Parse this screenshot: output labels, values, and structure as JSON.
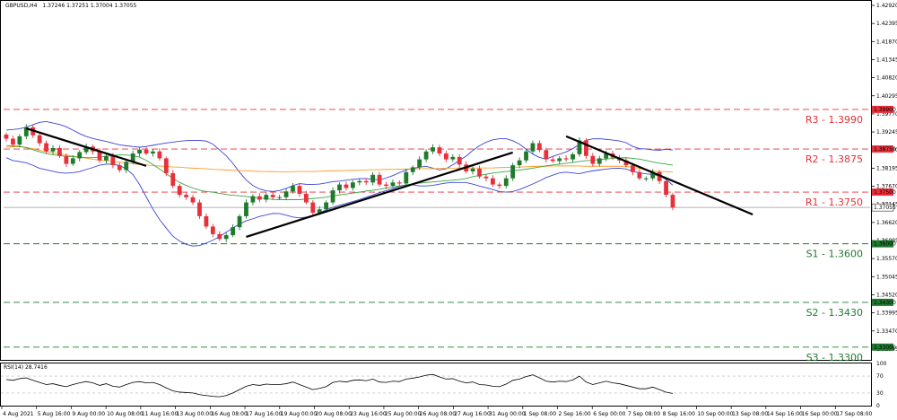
{
  "chart_data": {
    "type": "candlestick",
    "header": {
      "symbol_label": "GBPUSD,H4",
      "ohlc_label": "1.37246 1.37251 1.37004 1.37055"
    },
    "y_axis": {
      "ylim": [
        1.3263,
        1.4305
      ],
      "tick_values": [
        1.4292,
        1.42395,
        1.4187,
        1.41345,
        1.4082,
        1.40295,
        1.3977,
        1.39245,
        1.3872,
        1.38195,
        1.3767,
        1.37145,
        1.3662,
        1.36095,
        1.3557,
        1.35045,
        1.3452,
        1.33995,
        1.3347,
        1.32945
      ],
      "tick_labels": [
        "1.42920",
        "1.42395",
        "1.41870",
        "1.41345",
        "1.40820",
        "1.40295",
        "1.39770",
        "1.39245",
        "1.38720",
        "1.38195",
        "1.37670",
        "1.37145",
        "1.36620",
        "1.36095",
        "1.35570",
        "1.35045",
        "1.34520",
        "1.33995",
        "1.33470",
        "1.32945"
      ]
    },
    "x_axis": {
      "tick_labels": [
        "4 Aug 2021",
        "5 Aug 16:00",
        "9 Aug 00:00",
        "10 Aug 08:00",
        "11 Aug 16:00",
        "13 Aug 00:00",
        "16 Aug 08:00",
        "17 Aug 16:00",
        "19 Aug 00:00",
        "20 Aug 08:00",
        "23 Aug 16:00",
        "25 Aug 00:00",
        "26 Aug 08:00",
        "27 Aug 16:00",
        "31 Aug 00:00",
        "1 Sep 08:00",
        "2 Sep 16:00",
        "6 Sep 00:00",
        "7 Sep 08:00",
        "8 Sep 16:00",
        "10 Sep 00:00",
        "13 Sep 08:00",
        "14 Sep 16:00",
        "16 Sep 00:00",
        "17 Sep 08:00"
      ]
    },
    "candles": {
      "close_path": [
        1.3905,
        1.3888,
        1.3912,
        1.3938,
        1.3915,
        1.3892,
        1.3868,
        1.3878,
        1.3855,
        1.3832,
        1.3848,
        1.3866,
        1.3882,
        1.3868,
        1.3842,
        1.3855,
        1.3828,
        1.3814,
        1.3838,
        1.3862,
        1.3873,
        1.3862,
        1.3868,
        1.3848,
        1.3805,
        1.3768,
        1.3742,
        1.3735,
        1.372,
        1.368,
        1.365,
        1.3628,
        1.3614,
        1.3625,
        1.3648,
        1.368,
        1.372,
        1.3738,
        1.3728,
        1.3742,
        1.3735,
        1.3735,
        1.3752,
        1.3768,
        1.3745,
        1.372,
        1.369,
        1.37,
        1.372,
        1.3755,
        1.3772,
        1.3762,
        1.3778,
        1.3782,
        1.3778,
        1.38,
        1.3772,
        1.3768,
        1.3778,
        1.3775,
        1.3808,
        1.3822,
        1.3845,
        1.3868,
        1.388,
        1.3862,
        1.3845,
        1.3852,
        1.383,
        1.381,
        1.3818,
        1.3795,
        1.379,
        1.3772,
        1.3768,
        1.379,
        1.3828,
        1.3842,
        1.3868,
        1.3892,
        1.3872,
        1.3845,
        1.384,
        1.3848,
        1.3845,
        1.386,
        1.39,
        1.3855,
        1.3832,
        1.3848,
        1.3862,
        1.385,
        1.3842,
        1.3828,
        1.3808,
        1.379,
        1.379,
        1.3808,
        1.3782,
        1.3742,
        1.3705
      ]
    },
    "indicators": [
      {
        "name": "",
        "color": "#3a45d8",
        "values": [
          1.393,
          1.3932,
          1.3935,
          1.3942,
          1.3952,
          1.3955,
          1.395,
          1.3945,
          1.3935,
          1.3922,
          1.3912,
          1.3905,
          1.39,
          1.3895,
          1.3888,
          1.3885,
          1.3882,
          1.388,
          1.3884,
          1.3888,
          1.3892,
          1.3895,
          1.3898,
          1.39,
          1.39,
          1.39,
          1.389,
          1.387,
          1.385,
          1.382,
          1.379,
          1.377,
          1.3758,
          1.3752,
          1.3752,
          1.3758,
          1.3768,
          1.3775,
          1.3772,
          1.3772,
          1.3775,
          1.378,
          1.3782,
          1.3785,
          1.3788,
          1.379,
          1.3788,
          1.3785,
          1.3792,
          1.38,
          1.3812,
          1.3818,
          1.3822,
          1.3825,
          1.3818,
          1.3812,
          1.3825,
          1.384,
          1.3855,
          1.3875,
          1.389,
          1.39,
          1.3905,
          1.3905,
          1.3898,
          1.3885,
          1.3865,
          1.3852,
          1.3845,
          1.3855,
          1.3862,
          1.387,
          1.3885,
          1.39,
          1.3905,
          1.3905,
          1.3902,
          1.39,
          1.3895,
          1.3882,
          1.3875,
          1.3875,
          1.387,
          1.3875,
          1.3872
        ]
      },
      {
        "name": "",
        "color": "#3a45d8",
        "values": [
          1.385,
          1.384,
          1.3838,
          1.3832,
          1.382,
          1.3815,
          1.381,
          1.3805,
          1.3805,
          1.3808,
          1.3815,
          1.3822,
          1.383,
          1.3832,
          1.383,
          1.382,
          1.38,
          1.3765,
          1.372,
          1.368,
          1.365,
          1.3622,
          1.3605,
          1.3595,
          1.3592,
          1.36,
          1.361,
          1.3622,
          1.3638,
          1.3652,
          1.3665,
          1.3672,
          1.368,
          1.3685,
          1.369,
          1.3685,
          1.3678,
          1.3675,
          1.3678,
          1.3685,
          1.3695,
          1.3705,
          1.3712,
          1.3718,
          1.3725,
          1.3732,
          1.374,
          1.3748,
          1.3755,
          1.3762,
          1.377,
          1.3772,
          1.3768,
          1.3768,
          1.377,
          1.3775,
          1.3778,
          1.3778,
          1.3778,
          1.3772,
          1.3765,
          1.376,
          1.3752,
          1.375,
          1.3752,
          1.376,
          1.377,
          1.378,
          1.3792,
          1.38,
          1.3808,
          1.3808,
          1.3802,
          1.3808,
          1.3812,
          1.3815,
          1.3818,
          1.382,
          1.3818,
          1.381,
          1.3805,
          1.3802,
          1.38,
          1.379,
          1.377
        ]
      },
      {
        "name": "",
        "color": "#ff9b25",
        "values": [
          1.388,
          1.3882,
          1.3882,
          1.3878,
          1.3872,
          1.3868,
          1.3864,
          1.386,
          1.3856,
          1.3852,
          1.3849,
          1.3845,
          1.3842,
          1.384,
          1.3838,
          1.3835,
          1.3832,
          1.383,
          1.3828,
          1.3826,
          1.3825,
          1.3823,
          1.3822,
          1.382,
          1.3819,
          1.3818,
          1.3816,
          1.3815,
          1.3814,
          1.3813,
          1.3812,
          1.3811,
          1.381,
          1.381,
          1.3809,
          1.3809,
          1.3809,
          1.381,
          1.381,
          1.381,
          1.3811,
          1.3812,
          1.3812,
          1.3813,
          1.3813,
          1.3814,
          1.3815,
          1.3815,
          1.3816,
          1.3816,
          1.3817,
          1.3817,
          1.3818,
          1.3818,
          1.3818,
          1.3819,
          1.3819,
          1.382,
          1.382,
          1.382,
          1.382,
          1.382,
          1.3821,
          1.3822,
          1.3822,
          1.3823,
          1.3824,
          1.3825,
          1.3825,
          1.3826,
          1.3826,
          1.3826,
          1.3826,
          1.3825,
          1.3825,
          1.3825,
          1.3825,
          1.3825,
          1.3825,
          1.3822,
          1.3818,
          1.3812,
          1.381,
          1.381,
          1.3808
        ]
      },
      {
        "name": "",
        "color": "#39a844",
        "values": [
          1.3885,
          1.3884,
          1.3882,
          1.3876,
          1.3868,
          1.3862,
          1.3858,
          1.3855,
          1.3853,
          1.3852,
          1.385,
          1.385,
          1.3852,
          1.3855,
          1.3858,
          1.3858,
          1.3856,
          1.385,
          1.3838,
          1.3822,
          1.3806,
          1.379,
          1.3776,
          1.3766,
          1.3758,
          1.3752,
          1.375,
          1.3746,
          1.3742,
          1.374,
          1.3738,
          1.3735,
          1.3733,
          1.373,
          1.3728,
          1.3728,
          1.3728,
          1.3728,
          1.373,
          1.3732,
          1.3734,
          1.3738,
          1.3742,
          1.3745,
          1.3748,
          1.3752,
          1.3755,
          1.3758,
          1.3762,
          1.3766,
          1.377,
          1.3773,
          1.3776,
          1.3778,
          1.378,
          1.3782,
          1.3784,
          1.3786,
          1.379,
          1.3796,
          1.38,
          1.3804,
          1.3807,
          1.381,
          1.3812,
          1.3815,
          1.3818,
          1.3822,
          1.3826,
          1.3829,
          1.3832,
          1.3835,
          1.3838,
          1.3841,
          1.3843,
          1.3845,
          1.3847,
          1.3849,
          1.385,
          1.3848,
          1.3845,
          1.384,
          1.3835,
          1.3832,
          1.3828
        ]
      }
    ],
    "trendlines": [
      {
        "from_bar": 3,
        "from_price": 1.3935,
        "to_bar": 21,
        "to_price": 1.3826
      },
      {
        "from_bar": 36,
        "from_price": 1.362,
        "to_bar": 76,
        "to_price": 1.3865
      },
      {
        "from_bar": 84,
        "from_price": 1.3912,
        "to_bar": 112,
        "to_price": 1.3685
      }
    ],
    "levels": [
      {
        "label": "R3 - 1.3990",
        "price": 1.399,
        "tag": "1.39900",
        "color": "#e8303a",
        "tag_color": "#e8303a"
      },
      {
        "label": "R2 - 1.3875",
        "price": 1.3875,
        "tag": "1.38750",
        "color": "#e8303a",
        "tag_color": "#e8303a"
      },
      {
        "label": "R1 - 1.3750",
        "price": 1.375,
        "tag": "1.37500",
        "color": "#e8303a",
        "tag_color": "#e8303a"
      },
      {
        "label": "S1 - 1.3600",
        "price": 1.36,
        "tag": "1.36000",
        "color": "#1f7a2e",
        "tag_color": "#1f7a2e"
      },
      {
        "label": "S2 - 1.3430",
        "price": 1.343,
        "tag": "1.34300",
        "color": "#1f7a2e",
        "tag_color": "#1f7a2e"
      },
      {
        "label": "S3 - 1.3300",
        "price": 1.33,
        "tag": "1.33000",
        "color": "#1f7a2e",
        "tag_color": "#1f7a2e"
      }
    ],
    "current_price": {
      "price": 1.37055,
      "tag": "1.37055"
    },
    "colors": {
      "bull": "#1f7a2e",
      "bear": "#e8303a",
      "trendline": "#000000",
      "rsi_line": "#000000"
    },
    "rsi": {
      "label": "RSI(14) 28.7416",
      "ylim": [
        0,
        100
      ],
      "tick_labels": [
        "100",
        "70",
        "30",
        "0"
      ],
      "tick_values": [
        100,
        70,
        30,
        0
      ],
      "values": [
        62,
        60,
        64,
        66,
        60,
        55,
        50,
        52,
        48,
        45,
        50,
        54,
        57,
        54,
        48,
        52,
        46,
        44,
        50,
        55,
        57,
        54,
        55,
        50,
        42,
        35,
        32,
        31,
        30,
        26,
        24,
        22,
        21,
        24,
        30,
        38,
        46,
        50,
        48,
        51,
        50,
        50,
        52,
        56,
        50,
        44,
        38,
        41,
        45,
        55,
        58,
        56,
        60,
        61,
        59,
        63,
        56,
        55,
        58,
        57,
        63,
        65,
        68,
        72,
        74,
        68,
        63,
        64,
        58,
        54,
        56,
        50,
        49,
        46,
        45,
        51,
        60,
        63,
        69,
        73,
        66,
        58,
        56,
        58,
        57,
        61,
        70,
        56,
        50,
        54,
        58,
        54,
        52,
        48,
        44,
        40,
        40,
        44,
        38,
        32,
        29
      ]
    }
  }
}
